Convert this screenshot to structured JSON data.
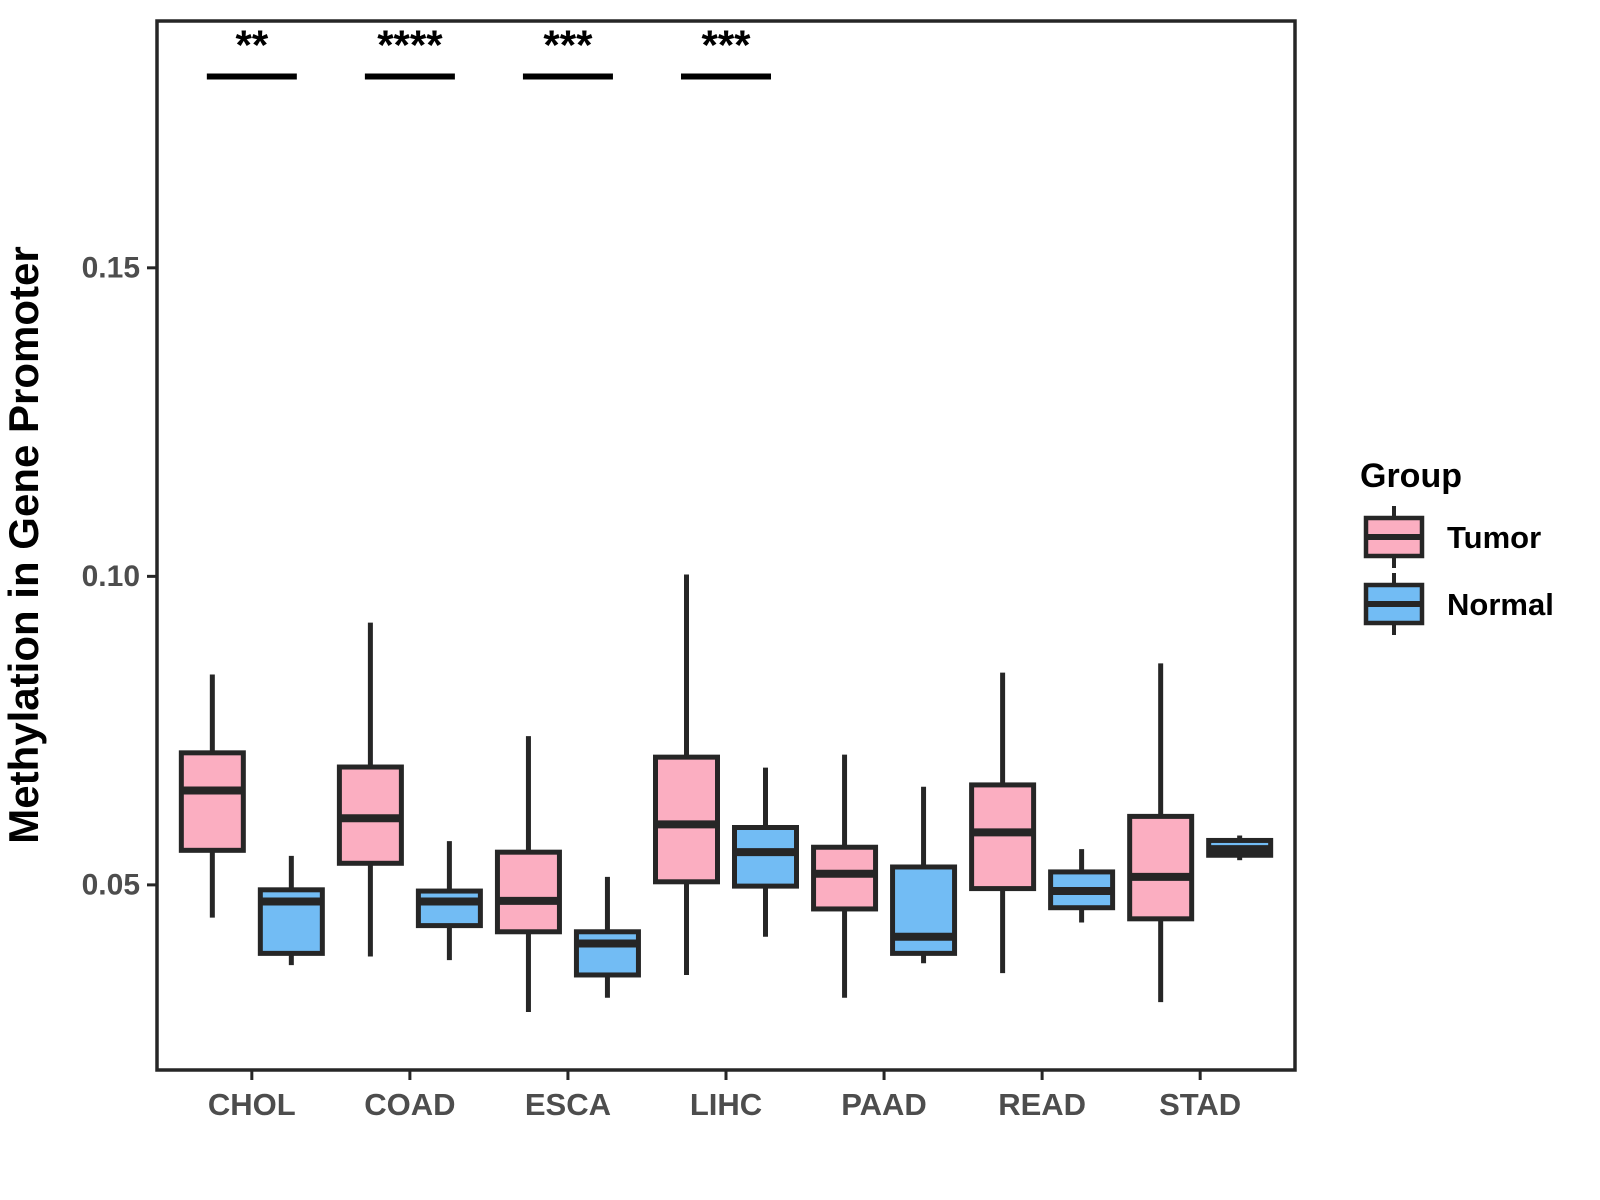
{
  "chart_data": {
    "type": "boxplot",
    "title": "",
    "xlabel": "",
    "ylabel": "Methylation in Gene Promoter",
    "categories": [
      "CHOL",
      "COAD",
      "ESCA",
      "LIHC",
      "PAAD",
      "READ",
      "STAD"
    ],
    "ylim": [
      0.02,
      0.19
    ],
    "yticks": [
      0.05,
      0.1,
      0.15
    ],
    "ytick_labels": [
      "0.05",
      "0.10",
      "0.15"
    ],
    "grid": false,
    "panel_border": true,
    "colors": {
      "tumor_fill": "#FBAEC1",
      "normal_fill": "#72BCF4",
      "stroke": "#262626",
      "tick_text": "#4D4D4D",
      "annotation": "#000000"
    },
    "legend": {
      "title": "Group",
      "position": "right",
      "entries": [
        {
          "label": "Tumor",
          "color": "#FBAEC1"
        },
        {
          "label": "Normal",
          "color": "#72BCF4"
        }
      ]
    },
    "series": [
      {
        "name": "Tumor",
        "color": "#FBAEC1",
        "boxes": [
          {
            "category": "CHOL",
            "whisker_low": 0.0447,
            "q1": 0.0556,
            "median": 0.0653,
            "q3": 0.0714,
            "whisker_high": 0.0841
          },
          {
            "category": "COAD",
            "whisker_low": 0.0384,
            "q1": 0.0535,
            "median": 0.0608,
            "q3": 0.0691,
            "whisker_high": 0.0925
          },
          {
            "category": "ESCA",
            "whisker_low": 0.0294,
            "q1": 0.0424,
            "median": 0.0474,
            "q3": 0.0553,
            "whisker_high": 0.0741
          },
          {
            "category": "LIHC",
            "whisker_low": 0.0354,
            "q1": 0.0505,
            "median": 0.0598,
            "q3": 0.0707,
            "whisker_high": 0.1003
          },
          {
            "category": "PAAD",
            "whisker_low": 0.0317,
            "q1": 0.0461,
            "median": 0.0518,
            "q3": 0.0561,
            "whisker_high": 0.0711
          },
          {
            "category": "READ",
            "whisker_low": 0.0357,
            "q1": 0.0494,
            "median": 0.0585,
            "q3": 0.0662,
            "whisker_high": 0.0844
          },
          {
            "category": "STAD",
            "whisker_low": 0.031,
            "q1": 0.0445,
            "median": 0.0513,
            "q3": 0.0611,
            "whisker_high": 0.0859
          }
        ]
      },
      {
        "name": "Normal",
        "color": "#72BCF4",
        "boxes": [
          {
            "category": "CHOL",
            "whisker_low": 0.037,
            "q1": 0.0389,
            "median": 0.0473,
            "q3": 0.0492,
            "whisker_high": 0.0547
          },
          {
            "category": "COAD",
            "whisker_low": 0.0378,
            "q1": 0.0434,
            "median": 0.0473,
            "q3": 0.049,
            "whisker_high": 0.0571
          },
          {
            "category": "ESCA",
            "whisker_low": 0.0317,
            "q1": 0.0354,
            "median": 0.0405,
            "q3": 0.0424,
            "whisker_high": 0.0513
          },
          {
            "category": "LIHC",
            "whisker_low": 0.0416,
            "q1": 0.0498,
            "median": 0.0553,
            "q3": 0.0593,
            "whisker_high": 0.069
          },
          {
            "category": "PAAD",
            "whisker_low": 0.0373,
            "q1": 0.0389,
            "median": 0.0416,
            "q3": 0.0529,
            "whisker_high": 0.0659
          },
          {
            "category": "READ",
            "whisker_low": 0.0439,
            "q1": 0.0463,
            "median": 0.049,
            "q3": 0.0521,
            "whisker_high": 0.0558
          },
          {
            "category": "STAD",
            "whisker_low": 0.054,
            "q1": 0.0548,
            "median": 0.0558,
            "q3": 0.0572,
            "whisker_high": 0.058
          }
        ]
      }
    ],
    "significance": [
      {
        "category": "CHOL",
        "label": "**",
        "y_value": 0.181
      },
      {
        "category": "COAD",
        "label": "****",
        "y_value": 0.181
      },
      {
        "category": "ESCA",
        "label": "***",
        "y_value": 0.181
      },
      {
        "category": "LIHC",
        "label": "***",
        "y_value": 0.181
      }
    ]
  }
}
